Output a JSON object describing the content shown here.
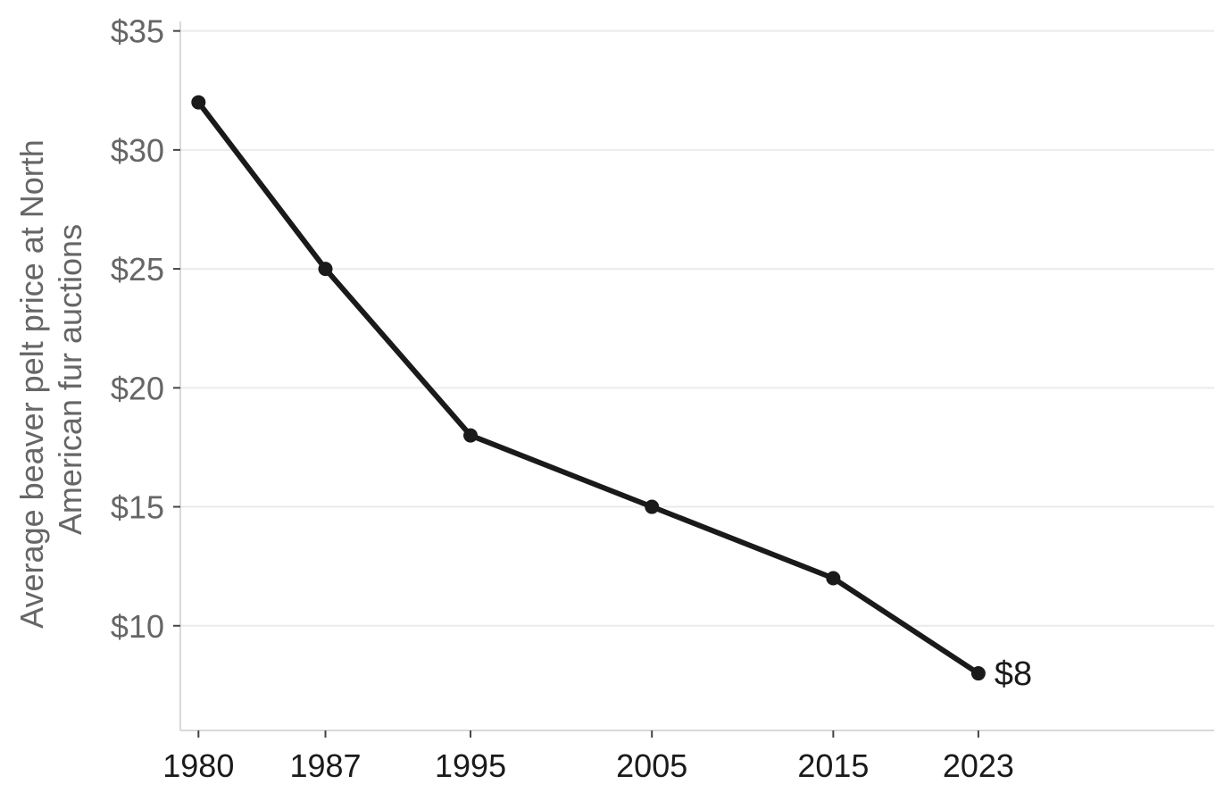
{
  "chart_data": {
    "type": "line",
    "title": "",
    "ylabel_lines": [
      "Average beaver pelt price at North",
      "American fur auctions"
    ],
    "xlabel": "",
    "x": [
      1980,
      1987,
      1995,
      2005,
      2015,
      2023
    ],
    "x_tick_labels": [
      "1980",
      "1987",
      "1995",
      "2005",
      "2015",
      "2023"
    ],
    "series": [
      {
        "values": [
          32,
          25,
          18,
          15,
          12,
          8
        ]
      }
    ],
    "y_ticks": [
      10,
      15,
      20,
      25,
      30,
      35
    ],
    "y_tick_labels": [
      "$10",
      "$15",
      "$20",
      "$25",
      "$30",
      "$35"
    ],
    "xlim": [
      1979,
      2036
    ],
    "ylim": [
      5.6,
      35.4
    ],
    "grid": "horizontal",
    "end_label": "$8",
    "colors": {
      "line": "#1a1a1a",
      "grid": "#ebebeb",
      "axis": "#d9d9d9",
      "tick_text": "#666666"
    }
  }
}
